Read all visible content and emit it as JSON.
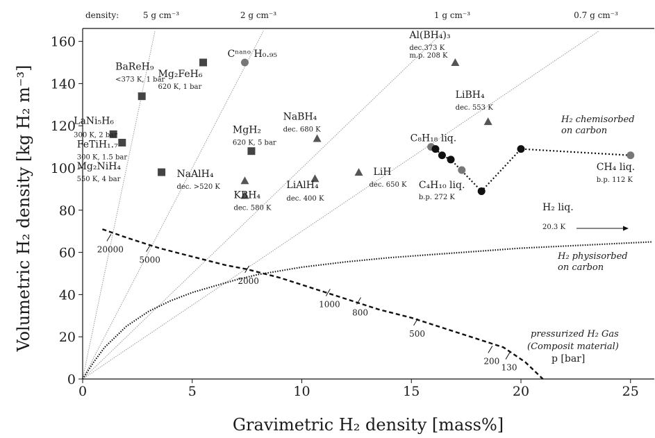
{
  "chart_data": {
    "type": "scatter",
    "xlabel": "Gravimetric H₂ density [mass%]",
    "ylabel": "Volumetric H₂ density [kg H₂ m⁻³]",
    "xlim": [
      0,
      26
    ],
    "ylim": [
      0,
      165
    ],
    "xticks": [
      "0",
      "5",
      "10",
      "15",
      "20",
      "25"
    ],
    "yticks": [
      "0",
      "20",
      "40",
      "60",
      "80",
      "100",
      "120",
      "140",
      "160"
    ],
    "density_label": "density:",
    "density_lines": [
      {
        "label": "5 g cm⁻³",
        "slope": 50
      },
      {
        "label": "2 g cm⁻³",
        "slope": 20
      },
      {
        "label": "1 g cm⁻³",
        "slope": 10
      },
      {
        "label": "0.7 g cm⁻³",
        "slope": 7
      }
    ],
    "series": [
      {
        "marker": "square",
        "points": [
          {
            "name": "BaReH₉",
            "cond": "<373 K, 1 bar",
            "x": 2.7,
            "y": 134
          },
          {
            "name": "Mg₂FeH₆",
            "cond": "620 K, 1 bar",
            "x": 5.5,
            "y": 150
          },
          {
            "name": "LaNi₅H₆",
            "cond": "300 K, 2 bar",
            "x": 1.4,
            "y": 116
          },
          {
            "name": "FeTiH₁.₇",
            "cond": "300 K, 1.5 bar",
            "x": 1.8,
            "y": 112
          },
          {
            "name": "Mg₂NiH₄",
            "cond": "550 K, 4 bar",
            "x": 3.6,
            "y": 98
          },
          {
            "name": "MgH₂",
            "cond": "620 K, 5 bar",
            "x": 7.7,
            "y": 108
          }
        ]
      },
      {
        "marker": "triangle",
        "points": [
          {
            "name": "Al(BH₄)₃",
            "cond": "dec.373 K",
            "cond2": "m.p. 208 K",
            "x": 17.0,
            "y": 150
          },
          {
            "name": "LiBH₄",
            "cond": "dec. 553 K",
            "x": 18.5,
            "y": 122
          },
          {
            "name": "NaBH₄",
            "cond": "dec. 680 K",
            "x": 10.7,
            "y": 114
          },
          {
            "name": "NaAlH₄",
            "cond": "dec. >520 K",
            "x": 7.4,
            "y": 94
          },
          {
            "name": "KBH₄",
            "cond": "dec. 580 K",
            "x": 7.4,
            "y": 87
          },
          {
            "name": "LiAlH₄",
            "cond": "dec. 400 K",
            "x": 10.6,
            "y": 95
          },
          {
            "name": "LiH",
            "cond": "dec. 650 K",
            "x": 12.6,
            "y": 98
          }
        ]
      },
      {
        "marker": "circle-gray",
        "points": [
          {
            "name": "Cⁿᵃⁿᵒ H₀.₉₅",
            "x": 7.4,
            "y": 150
          },
          {
            "name": "C₈H₁₈ liq.",
            "x": 15.9,
            "y": 110
          },
          {
            "name": "C₄H₁₀ liq.",
            "cond": "b.p. 272 K",
            "x": 17.3,
            "y": 99
          },
          {
            "name": "CH₄ liq.",
            "cond": "b.p. 112 K",
            "x": 25.0,
            "y": 106
          }
        ]
      },
      {
        "name": "H₂ chemisorbed on carbon",
        "marker": "circle-black",
        "points": [
          {
            "x": 16.1,
            "y": 109
          },
          {
            "x": 16.4,
            "y": 106
          },
          {
            "x": 16.8,
            "y": 104
          },
          {
            "x": 18.2,
            "y": 89
          },
          {
            "x": 20.0,
            "y": 109
          },
          {
            "x": 25.0,
            "y": 106
          }
        ]
      }
    ],
    "curves": [
      {
        "name": "H₂ physisorbed on carbon",
        "style": "dotted",
        "points": [
          [
            0,
            0
          ],
          [
            0.5,
            8
          ],
          [
            1,
            15
          ],
          [
            2,
            25
          ],
          [
            3,
            32
          ],
          [
            4,
            37
          ],
          [
            5,
            41
          ],
          [
            6,
            44
          ],
          [
            7,
            47
          ],
          [
            8,
            49.5
          ],
          [
            10,
            53
          ],
          [
            12,
            55.5
          ],
          [
            14,
            57.5
          ],
          [
            16,
            59
          ],
          [
            18,
            60.5
          ],
          [
            20,
            62
          ],
          [
            22,
            63
          ],
          [
            24,
            64
          ],
          [
            26,
            65
          ]
        ]
      },
      {
        "name": "pressurized H₂ Gas (Composit material)",
        "style": "dashed",
        "points": [
          [
            0.9,
            71
          ],
          [
            2,
            67
          ],
          [
            3.5,
            62
          ],
          [
            5,
            58
          ],
          [
            6.5,
            54
          ],
          [
            7.5,
            52
          ],
          [
            9,
            48
          ],
          [
            10.5,
            43
          ],
          [
            12,
            38
          ],
          [
            13.5,
            33
          ],
          [
            15,
            29
          ],
          [
            16.5,
            24
          ],
          [
            18,
            19
          ],
          [
            19.2,
            15
          ],
          [
            20.2,
            8
          ],
          [
            21,
            0
          ]
        ]
      }
    ],
    "pressure_labels": [
      {
        "text": "20000",
        "x": 1.2,
        "y": 67
      },
      {
        "text": "5000",
        "x": 3.0,
        "y": 62
      },
      {
        "text": "2000",
        "x": 7.5,
        "y": 52
      },
      {
        "text": "1000",
        "x": 11.2,
        "y": 41
      },
      {
        "text": "800",
        "x": 12.6,
        "y": 37
      },
      {
        "text": "500",
        "x": 15.2,
        "y": 27
      },
      {
        "text": "200",
        "x": 18.6,
        "y": 14
      },
      {
        "text": "130",
        "x": 19.4,
        "y": 11
      }
    ],
    "annotations": {
      "chemisorbed": "H₂ chemisorbed",
      "chemisorbed2": "on carbon",
      "physisorbed": "H₂ physisorbed",
      "physisorbed2": "on carbon",
      "h2liq": "H₂ liq.",
      "h2liq_cond": "20.3 K",
      "pressurized": "pressurized H₂ Gas",
      "pressurized2": "(Composit material)",
      "pbar": "p [bar]"
    },
    "grid": false
  }
}
